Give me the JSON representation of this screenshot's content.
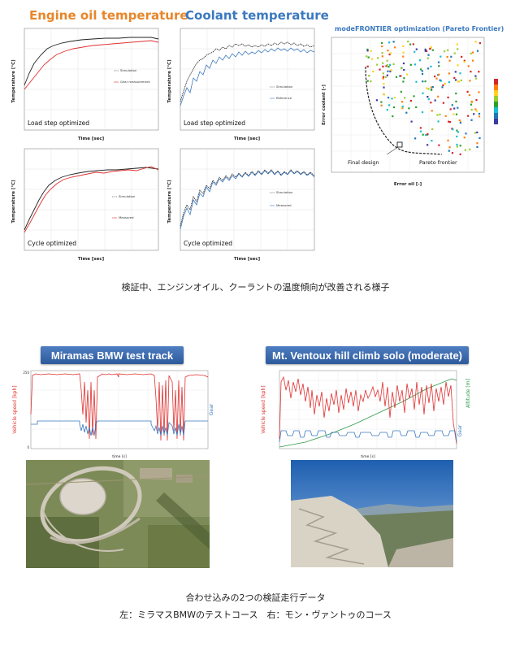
{
  "header": {
    "engine_oil": "Engine oil temperature",
    "coolant": "Coolant temperature",
    "mode_frontier": "modeFRONTIER optimization (Pareto Frontier)"
  },
  "plots": {
    "oil_load": {
      "caption": "Load step optimized",
      "xlabel": "Time [sec]",
      "ylabel": "Temperature [°C]",
      "legend": [
        "Simulation",
        "Gear measurement"
      ]
    },
    "oil_cycle": {
      "caption": "Cycle optimized",
      "xlabel": "Time [sec]",
      "ylabel": "Temperature [°C]",
      "legend": [
        "Simulation",
        "Measured"
      ]
    },
    "cool_load": {
      "caption": "Load step optimized",
      "xlabel": "Time [sec]",
      "ylabel": "Temperature [°C]",
      "legend": [
        "Simulation",
        "Reference"
      ]
    },
    "cool_cycle": {
      "caption": "Cycle optimized",
      "xlabel": "Time [sec]",
      "ylabel": "Temperature [°C]",
      "legend": [
        "Simulation",
        "Measured"
      ]
    },
    "pareto": {
      "xlabel": "Error oil [-]",
      "ylabel": "Error coolant [-]",
      "final_design": "Final design",
      "pareto_frontier": "Pareto frontier"
    }
  },
  "captions": {
    "validation": "検証中、エンジンオイル、クーラントの温度傾向が改善される様子",
    "bottom_line1": "合わせ込みの2つの検証走行データ",
    "bottom_line2": "左：ミラマスBMWのテストコース　右：モン・ヴァントゥのコース"
  },
  "tracks": {
    "miramas": {
      "title": "Miramas BMW test track",
      "ylabel_left": "Vehicle speed [kph]",
      "ylabel_right": "Gear",
      "xlabel": "time [s]"
    },
    "ventoux": {
      "title": "Mt. Ventoux hill climb solo (moderate)",
      "ylabel_left": "Vehicle speed [kph]",
      "ylabel_right": "Gear",
      "ylabel_right2": "Altitude [m]",
      "xlabel": "time [s]"
    }
  },
  "colors": {
    "orange": "#e8862a",
    "blue": "#3b79bf",
    "red": "#e03030",
    "green": "#2e9a4a",
    "title_bar": "#3a6aae"
  }
}
